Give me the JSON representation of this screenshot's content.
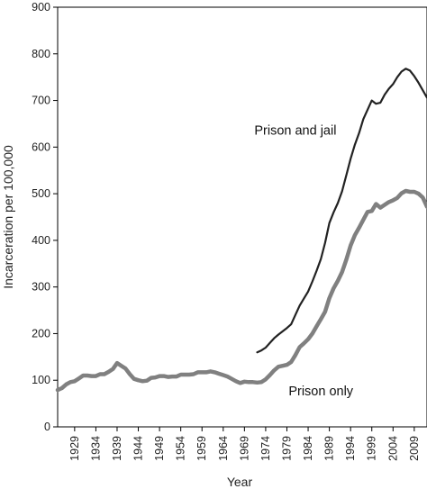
{
  "chart_data": {
    "type": "line",
    "title": "",
    "xlabel": "Year",
    "ylabel": "Incarceration per 100,000",
    "xlim": [
      1925,
      2012
    ],
    "ylim": [
      0,
      900
    ],
    "yticks": [
      0,
      100,
      200,
      300,
      400,
      500,
      600,
      700,
      800,
      900
    ],
    "xticks": [
      1929,
      1934,
      1939,
      1944,
      1949,
      1954,
      1959,
      1964,
      1969,
      1974,
      1979,
      1984,
      1989,
      1994,
      1999,
      2004,
      2009
    ],
    "xtick_labels": [
      "1929",
      "1934",
      "1939",
      "1944",
      "1949",
      "1954",
      "1959",
      "1964",
      "1969",
      "1974",
      "1979",
      "1984",
      "1989",
      "1994",
      "1999",
      "2004",
      "2009"
    ],
    "ytick_labels": [
      "0",
      "100",
      "200",
      "300",
      "400",
      "500",
      "600",
      "700",
      "800",
      "900"
    ],
    "grid": false,
    "legend": "none",
    "series": [
      {
        "name": "Prison only",
        "color": "#808080",
        "x": [
          1925,
          1926,
          1927,
          1928,
          1929,
          1930,
          1931,
          1932,
          1933,
          1934,
          1935,
          1936,
          1937,
          1938,
          1939,
          1940,
          1941,
          1942,
          1943,
          1944,
          1945,
          1946,
          1947,
          1948,
          1949,
          1950,
          1951,
          1952,
          1953,
          1954,
          1955,
          1956,
          1957,
          1958,
          1959,
          1960,
          1961,
          1962,
          1963,
          1964,
          1965,
          1966,
          1967,
          1968,
          1969,
          1970,
          1971,
          1972,
          1973,
          1974,
          1975,
          1976,
          1977,
          1978,
          1979,
          1980,
          1981,
          1982,
          1983,
          1984,
          1985,
          1986,
          1987,
          1988,
          1989,
          1990,
          1991,
          1992,
          1993,
          1994,
          1995,
          1996,
          1997,
          1998,
          1999,
          2000,
          2001,
          2002,
          2003,
          2004,
          2005,
          2006,
          2007,
          2008,
          2009,
          2010,
          2011,
          2012
        ],
        "values": [
          79,
          83,
          91,
          96,
          98,
          104,
          110,
          110,
          109,
          109,
          113,
          113,
          118,
          124,
          137,
          131,
          125,
          113,
          103,
          100,
          98,
          99,
          105,
          106,
          109,
          109,
          107,
          108,
          108,
          112,
          112,
          112,
          113,
          117,
          117,
          117,
          119,
          117,
          114,
          111,
          108,
          103,
          98,
          94,
          97,
          96,
          96,
          95,
          96,
          102,
          111,
          121,
          129,
          131,
          133,
          139,
          154,
          171,
          179,
          188,
          200,
          216,
          231,
          247,
          276,
          297,
          313,
          332,
          359,
          389,
          411,
          427,
          444,
          461,
          463,
          478,
          470,
          476,
          482,
          486,
          491,
          501,
          506,
          504,
          504,
          500,
          492,
          472
        ]
      },
      {
        "name": "Prison and jail",
        "color": "#222222",
        "x": [
          1972,
          1973,
          1974,
          1975,
          1976,
          1977,
          1978,
          1979,
          1980,
          1981,
          1982,
          1983,
          1984,
          1985,
          1986,
          1987,
          1988,
          1989,
          1990,
          1991,
          1992,
          1993,
          1994,
          1995,
          1996,
          1997,
          1998,
          1999,
          2000,
          2001,
          2002,
          2003,
          2004,
          2005,
          2006,
          2007,
          2008,
          2009,
          2010,
          2011,
          2012
        ],
        "values": [
          160,
          164,
          170,
          180,
          190,
          198,
          205,
          212,
          220,
          240,
          260,
          275,
          290,
          312,
          335,
          360,
          395,
          437,
          460,
          480,
          505,
          540,
          575,
          605,
          630,
          660,
          680,
          700,
          693,
          695,
          712,
          725,
          735,
          750,
          762,
          768,
          764,
          752,
          738,
          722,
          706
        ]
      }
    ],
    "annotations": [
      {
        "text": "Prison and jail",
        "x": 1981,
        "y": 627
      },
      {
        "text": "Prison only",
        "x": 1987,
        "y": 68
      }
    ]
  }
}
